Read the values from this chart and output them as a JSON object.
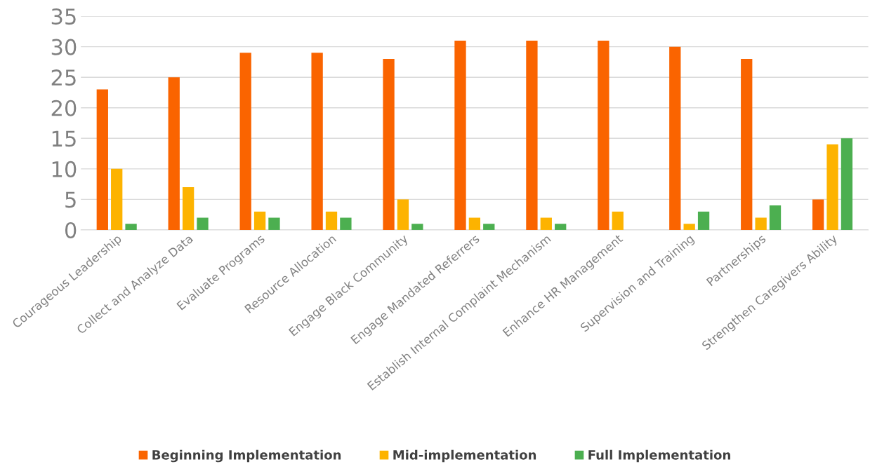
{
  "chart_data": {
    "type": "bar",
    "categories": [
      "Courageous Leadership",
      "Collect and Analyze Data",
      "Evaluate Programs",
      "Resource Allocation",
      "Engage Black Community",
      "Engage Mandated Referrers",
      "Establish Internal Complaint Mechanism",
      "Enhance HR Management",
      "Supervision and Training",
      "Partnerships",
      "Strengthen Caregivers Ability"
    ],
    "series": [
      {
        "name": "Beginning Implementation",
        "color": "#fa6400",
        "values": [
          23,
          25,
          29,
          29,
          28,
          31,
          31,
          31,
          30,
          28,
          5
        ]
      },
      {
        "name": "Mid-implementation",
        "color": "#fdb300",
        "values": [
          10,
          7,
          3,
          3,
          5,
          2,
          2,
          3,
          1,
          2,
          14
        ]
      },
      {
        "name": "Full Implementation",
        "color": "#4caf50",
        "values": [
          1,
          2,
          2,
          2,
          1,
          1,
          1,
          0,
          3,
          4,
          15
        ]
      }
    ],
    "ylim": [
      0,
      35
    ],
    "yticks": [
      0,
      5,
      10,
      15,
      20,
      25,
      30,
      35
    ],
    "grid": "y",
    "legend": "bottom"
  }
}
